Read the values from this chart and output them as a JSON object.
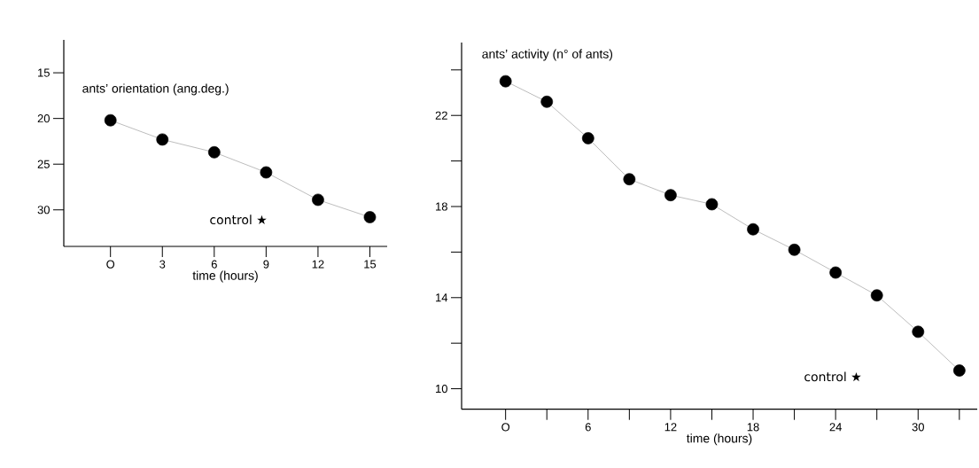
{
  "chart_data": [
    {
      "type": "line",
      "ylabel": "ants’ orientation (ang.deg.)",
      "xlabel": "time (hours)",
      "x": [
        0,
        3,
        6,
        9,
        12,
        15
      ],
      "series": [
        {
          "color": "#000000",
          "values": [
            20.2,
            22.3,
            23.7,
            25.9,
            28.9,
            30.8
          ]
        }
      ],
      "marker": "circle",
      "xlim": [
        -2.7,
        16
      ],
      "ylim": [
        34,
        11.4
      ],
      "xticks": [
        {
          "value": 0,
          "label": "O"
        },
        3,
        6,
        9,
        12,
        15
      ],
      "yticks": [
        15,
        20,
        25,
        30
      ],
      "annotations": [
        "control ★"
      ],
      "grid": false
    },
    {
      "type": "line",
      "ylabel": "ants’ activity (n° of ants)",
      "xlabel": "time (hours)",
      "x": [
        0,
        3,
        6,
        9,
        12,
        15,
        18,
        21,
        24,
        27,
        30,
        33
      ],
      "series": [
        {
          "color": "#000000",
          "values": [
            23.5,
            22.6,
            21.0,
            19.2,
            18.5,
            18.1,
            17.0,
            16.1,
            15.1,
            14.1,
            12.5,
            10.8
          ]
        }
      ],
      "marker": "circle",
      "xlim": [
        -3.2,
        34.3
      ],
      "ylim": [
        9.1,
        25.2
      ],
      "xticks": [
        {
          "value": 0,
          "label": "O"
        },
        {
          "value": 3,
          "label": null
        },
        6,
        {
          "value": 9,
          "label": null
        },
        12,
        {
          "value": 15,
          "label": null
        },
        18,
        {
          "value": 21,
          "label": null
        },
        24,
        {
          "value": 27,
          "label": null
        },
        30,
        {
          "value": 33,
          "label": null
        }
      ],
      "yticks": [
        10,
        {
          "value": 12,
          "label": null
        },
        14,
        {
          "value": 16,
          "label": null
        },
        18,
        {
          "value": 20,
          "label": null
        },
        22,
        {
          "value": 24,
          "label": null
        }
      ],
      "annotations": [
        "control ★"
      ],
      "grid": false
    }
  ]
}
